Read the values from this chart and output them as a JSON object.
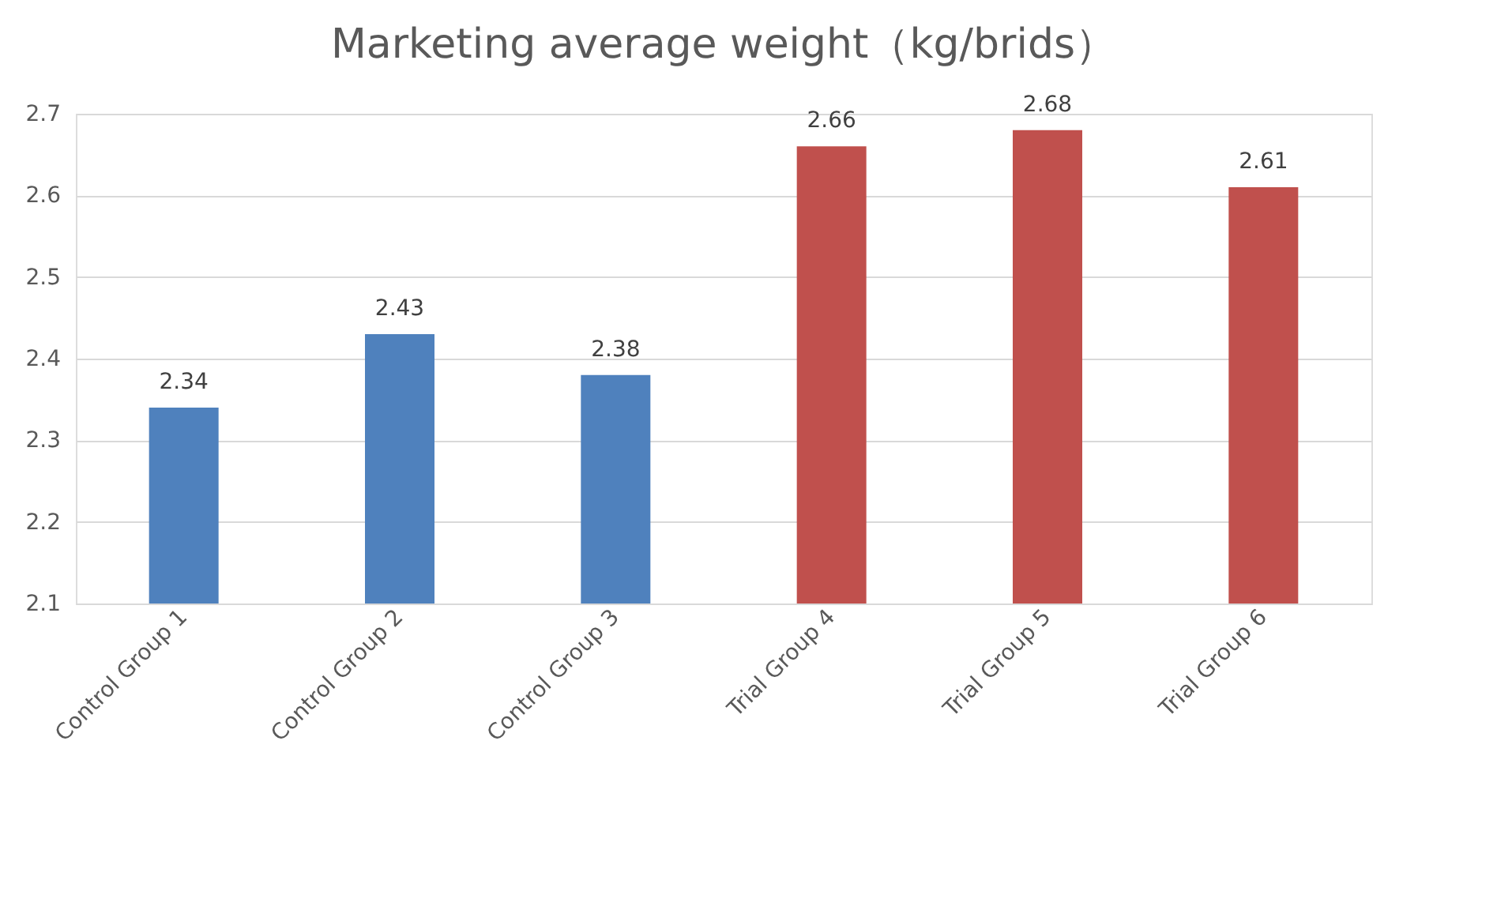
{
  "chart_data": {
    "type": "bar",
    "title": "Marketing average weight（kg/brids）",
    "categories": [
      "Control Group 1",
      "Control Group 2",
      "Control Group 3",
      "Trial Group 4",
      "Trial Group 5",
      "Trial Group 6"
    ],
    "values": [
      2.34,
      2.43,
      2.38,
      2.66,
      2.68,
      2.61
    ],
    "colors": [
      "#4f81bd",
      "#4f81bd",
      "#4f81bd",
      "#c0504d",
      "#c0504d",
      "#c0504d"
    ],
    "ylim": [
      2.1,
      2.7
    ],
    "yticks": [
      2.1,
      2.2,
      2.3,
      2.4,
      2.5,
      2.6,
      2.7
    ],
    "grid": "y",
    "data_labels": true
  }
}
